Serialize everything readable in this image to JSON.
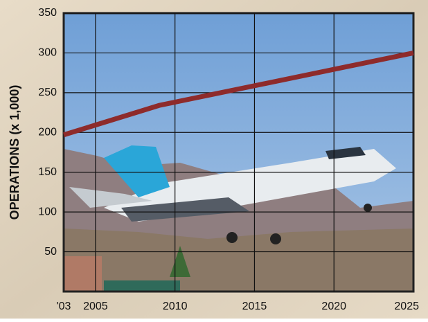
{
  "chart_data": {
    "type": "line",
    "y_label": "OPERATIONS (x 1,000)",
    "x": [
      2003,
      2009,
      2025
    ],
    "values": [
      197,
      234,
      300
    ],
    "color": "#8e2b2b",
    "xlim": [
      2003,
      2025
    ],
    "xticks": [
      {
        "value": 2003,
        "label": "'03"
      },
      2005,
      2010,
      2015,
      2020,
      2025
    ],
    "ylim": [
      0,
      350
    ],
    "yticks": [
      50,
      100,
      150,
      200,
      250,
      300,
      350
    ],
    "grid": true
  }
}
